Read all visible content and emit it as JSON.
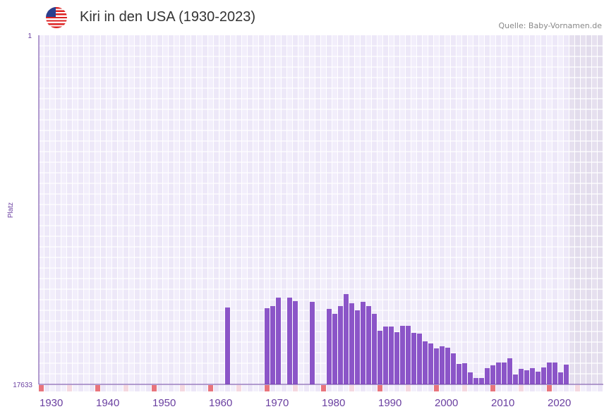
{
  "header": {
    "title": "Kiri in den USA (1930-2023)",
    "source": "Quelle: Baby-Vornamen.de",
    "flag_icon": "us-flag-icon"
  },
  "colors": {
    "bar": "#8b55c8",
    "decade_marker": "#e8747c",
    "half_decade_marker": "#f5d8e0",
    "axis": "#6a3fa0"
  },
  "chart_data": {
    "type": "bar",
    "title": "Kiri in den USA (1930-2023)",
    "ylabel": "Platz",
    "xlabel": "",
    "ylim": [
      1,
      17633
    ],
    "y_inverted": true,
    "y_tick_labels": [
      "1",
      "17633"
    ],
    "xlim": [
      1930,
      2029
    ],
    "x_tick_labels": [
      "1930",
      "1940",
      "1950",
      "1960",
      "1970",
      "1980",
      "1990",
      "2000",
      "2010",
      "2020"
    ],
    "shaded_future_from": 2024,
    "x": [
      1963,
      1970,
      1971,
      1972,
      1974,
      1975,
      1978,
      1981,
      1982,
      1983,
      1984,
      1985,
      1986,
      1987,
      1988,
      1989,
      1990,
      1991,
      1992,
      1993,
      1994,
      1995,
      1996,
      1997,
      1998,
      1999,
      2000,
      2001,
      2002,
      2003,
      2004,
      2005,
      2006,
      2007,
      2008,
      2009,
      2010,
      2011,
      2012,
      2013,
      2014,
      2015,
      2016,
      2017,
      2018,
      2019,
      2020,
      2021,
      2022,
      2023
    ],
    "values": [
      13750,
      13786,
      13679,
      13251,
      13251,
      13429,
      13465,
      13821,
      14071,
      13679,
      13073,
      13536,
      13893,
      13465,
      13679,
      14071,
      14926,
      14712,
      14712,
      14997,
      14676,
      14676,
      15033,
      15068,
      15460,
      15567,
      15816,
      15709,
      15780,
      16065,
      16600,
      16564,
      17027,
      17312,
      17312,
      16813,
      16671,
      16529,
      16529,
      16315,
      17134,
      16849,
      16921,
      16813,
      16991,
      16778,
      16529,
      16529,
      17027,
      16636
    ]
  }
}
